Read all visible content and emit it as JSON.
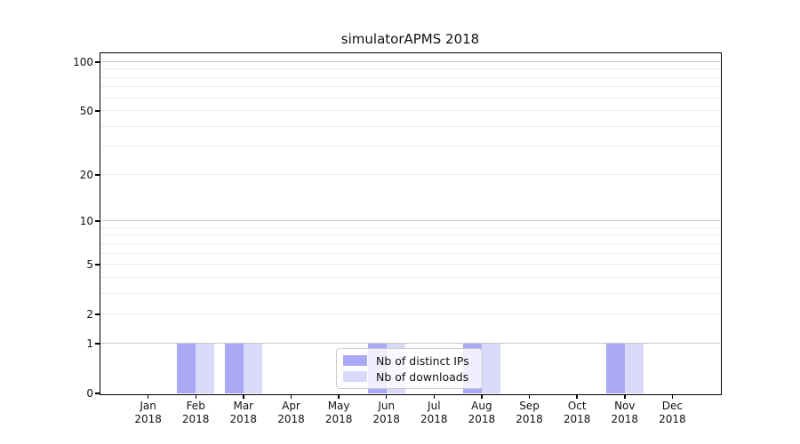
{
  "title": "simulatorAPMS 2018",
  "chart_data": {
    "type": "bar",
    "title": "simulatorAPMS 2018",
    "xlabel": "",
    "ylabel": "",
    "x_tick_labels": [
      [
        "Jan",
        "2018"
      ],
      [
        "Feb",
        "2018"
      ],
      [
        "Mar",
        "2018"
      ],
      [
        "Apr",
        "2018"
      ],
      [
        "May",
        "2018"
      ],
      [
        "Jun",
        "2018"
      ],
      [
        "Jul",
        "2018"
      ],
      [
        "Aug",
        "2018"
      ],
      [
        "Sep",
        "2018"
      ],
      [
        "Oct",
        "2018"
      ],
      [
        "Nov",
        "2018"
      ],
      [
        "Dec",
        "2018"
      ]
    ],
    "categories": [
      "Jan 2018",
      "Feb 2018",
      "Mar 2018",
      "Apr 2018",
      "May 2018",
      "Jun 2018",
      "Jul 2018",
      "Aug 2018",
      "Sep 2018",
      "Oct 2018",
      "Nov 2018",
      "Dec 2018"
    ],
    "series": [
      {
        "name": "Nb of distinct IPs",
        "color": "#a9a9f6",
        "values": [
          0,
          1,
          1,
          0,
          0,
          1,
          0,
          1,
          0,
          0,
          1,
          0
        ]
      },
      {
        "name": "Nb of downloads",
        "color": "#d9d9fa",
        "values": [
          0,
          1,
          1,
          0,
          0,
          1,
          0,
          1,
          0,
          0,
          1,
          0
        ]
      }
    ],
    "y_scale": "log1p",
    "y_max": 113,
    "ylim": [
      0,
      113
    ],
    "y_ticks": [
      0,
      1,
      2,
      5,
      10,
      20,
      50,
      100
    ],
    "major_gridlines": [
      1,
      10,
      100
    ],
    "minor_gridlines": [
      2,
      3,
      4,
      5,
      6,
      7,
      8,
      9,
      20,
      30,
      40,
      50,
      60,
      70,
      80,
      90
    ],
    "grid": true,
    "legend_position": "lower center"
  },
  "colors": {
    "background": "#ffffff",
    "bar_distinct_ips": "#a9a9f6",
    "bar_downloads": "#d9d9fa",
    "gridline_major": "#c8c8c8",
    "gridline_minor": "#ededed",
    "axis_spine": "#000000",
    "text": "#111111",
    "legend_border": "#cccccc"
  }
}
